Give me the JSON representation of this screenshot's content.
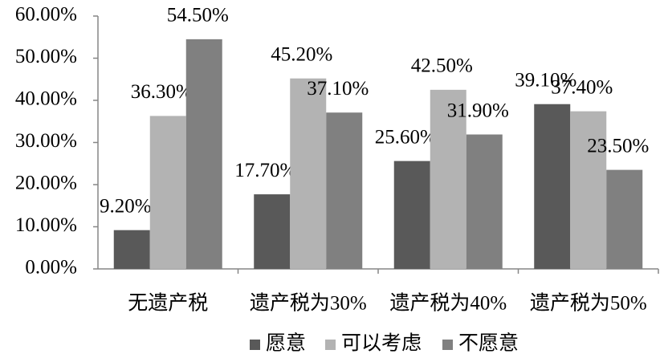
{
  "chart_data": {
    "type": "bar",
    "categories": [
      "无遗产税",
      "遗产税为30%",
      "遗产税为40%",
      "遗产税为50%"
    ],
    "series": [
      {
        "name": "愿意",
        "color": "#595959",
        "values": [
          9.2,
          17.7,
          25.6,
          39.1
        ],
        "value_labels": [
          "9.20%",
          "17.70%",
          "25.60%",
          "39.10%"
        ]
      },
      {
        "name": "可以考虑",
        "color": "#b3b3b3",
        "values": [
          36.3,
          45.2,
          42.5,
          37.4
        ],
        "value_labels": [
          "36.30%",
          "45.20%",
          "42.50%",
          "37.40%"
        ]
      },
      {
        "name": "不愿意",
        "color": "#808080",
        "values": [
          54.5,
          37.1,
          31.9,
          23.5
        ],
        "value_labels": [
          "54.50%",
          "37.10%",
          "31.90%",
          "23.50%"
        ]
      }
    ],
    "ylim": [
      0,
      60
    ],
    "yticks": [
      {
        "value": 0,
        "label": "0.00%"
      },
      {
        "value": 10,
        "label": "10.00%"
      },
      {
        "value": 20,
        "label": "20.00%"
      },
      {
        "value": 30,
        "label": "30.00%"
      },
      {
        "value": 40,
        "label": "40.00%"
      },
      {
        "value": 50,
        "label": "50.00%"
      },
      {
        "value": 60,
        "label": "60.00%"
      }
    ],
    "legend": "bottom"
  }
}
